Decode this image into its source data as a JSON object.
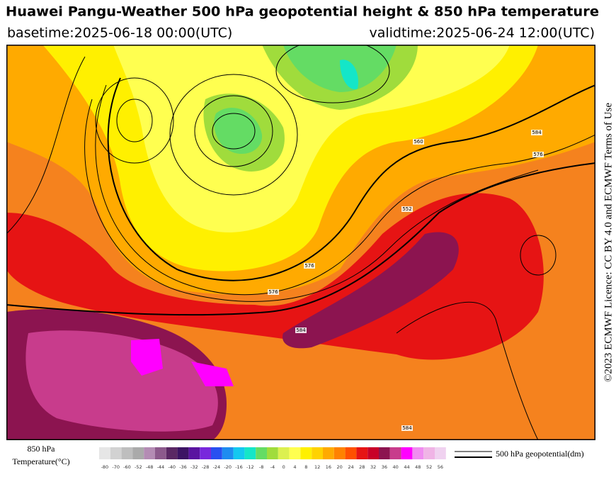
{
  "header": {
    "title": "Huawei Pangu-Weather 500 hPa geopotential height & 850 hPa temperature",
    "basetime": "basetime:2025-06-18 00:00(UTC)",
    "validtime": "validtime:2025-06-24 12:00(UTC)"
  },
  "side_note": "©2023 ECMWF Licence: CC BY 4.0 and ECMWF Terms of Use",
  "map": {
    "contour_labels": [
      "552",
      "560",
      "576",
      "576",
      "584",
      "584",
      "584",
      "576"
    ]
  },
  "colorbar": {
    "title_line1": "850 hPa",
    "title_line2": "Temperature(°C)",
    "ticks": [
      -80,
      -70,
      -60,
      -52,
      -48,
      -44,
      -40,
      -36,
      -32,
      -28,
      -24,
      -20,
      -16,
      -12,
      -8,
      -4,
      0,
      4,
      8,
      12,
      16,
      20,
      24,
      28,
      32,
      36,
      40,
      44,
      48,
      52,
      56
    ],
    "colors": [
      "#e6e6e6",
      "#d2d2d2",
      "#bebebe",
      "#aaaaaa",
      "#b48cb4",
      "#8c5a8c",
      "#5a2864",
      "#3c1464",
      "#5a14a0",
      "#7828dc",
      "#2850f0",
      "#1e8cf0",
      "#14c8f0",
      "#14e6c8",
      "#64dc64",
      "#a0dc3c",
      "#dcf050",
      "#ffff50",
      "#fff000",
      "#ffd200",
      "#ffaa00",
      "#ff8200",
      "#ff5000",
      "#e61414",
      "#c80028",
      "#8c1450",
      "#c83c8c",
      "#ff00ff",
      "#f08cf0",
      "#f0b4e6",
      "#f0d2f0"
    ]
  },
  "legend": {
    "label": "500 hPa geopotential(dm)"
  }
}
